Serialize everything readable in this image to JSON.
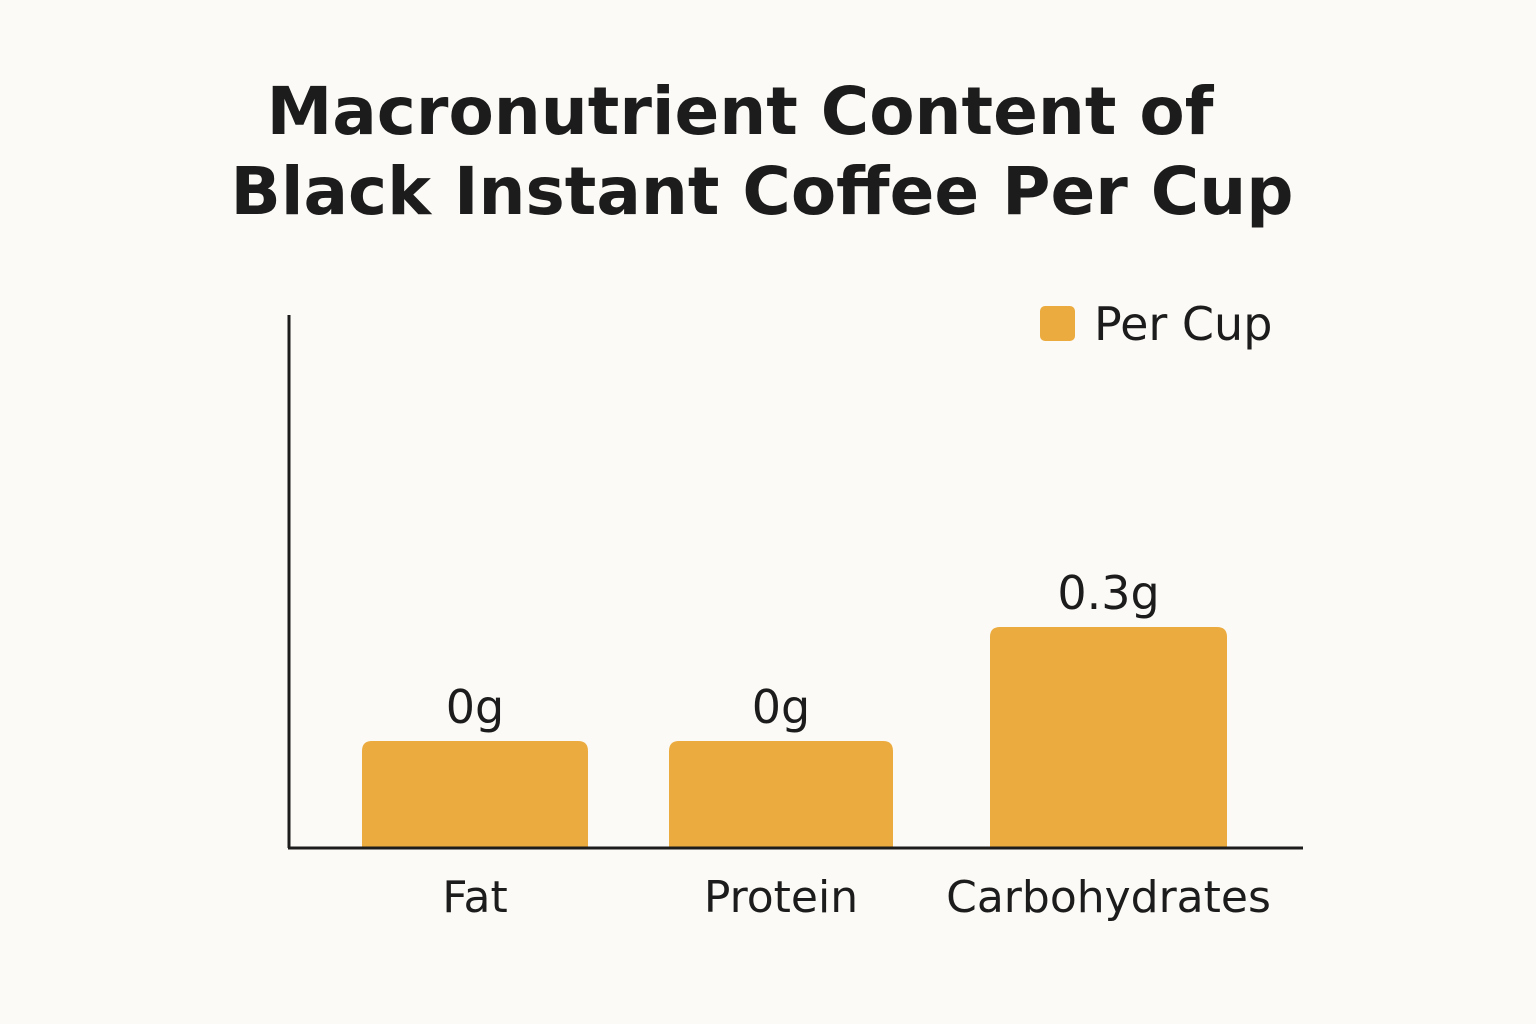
{
  "chart_data": {
    "type": "bar",
    "title": [
      "Macronutrient Content of",
      "Black Instant Coffee Per Cup"
    ],
    "categories": [
      "Fat",
      "Protein",
      "Carbohydrates"
    ],
    "series": [
      {
        "name": "Per Cup",
        "values": [
          0,
          0,
          0.3
        ]
      }
    ],
    "data_labels": [
      "0g",
      "0g",
      "0.3g"
    ],
    "xlabel": "",
    "ylabel": "",
    "unit": "g",
    "grid": false,
    "legend": "top-right",
    "colors": {
      "bar": "#ebab3e",
      "axis": "#1c1c1c",
      "background": "#fcfaf6"
    }
  }
}
